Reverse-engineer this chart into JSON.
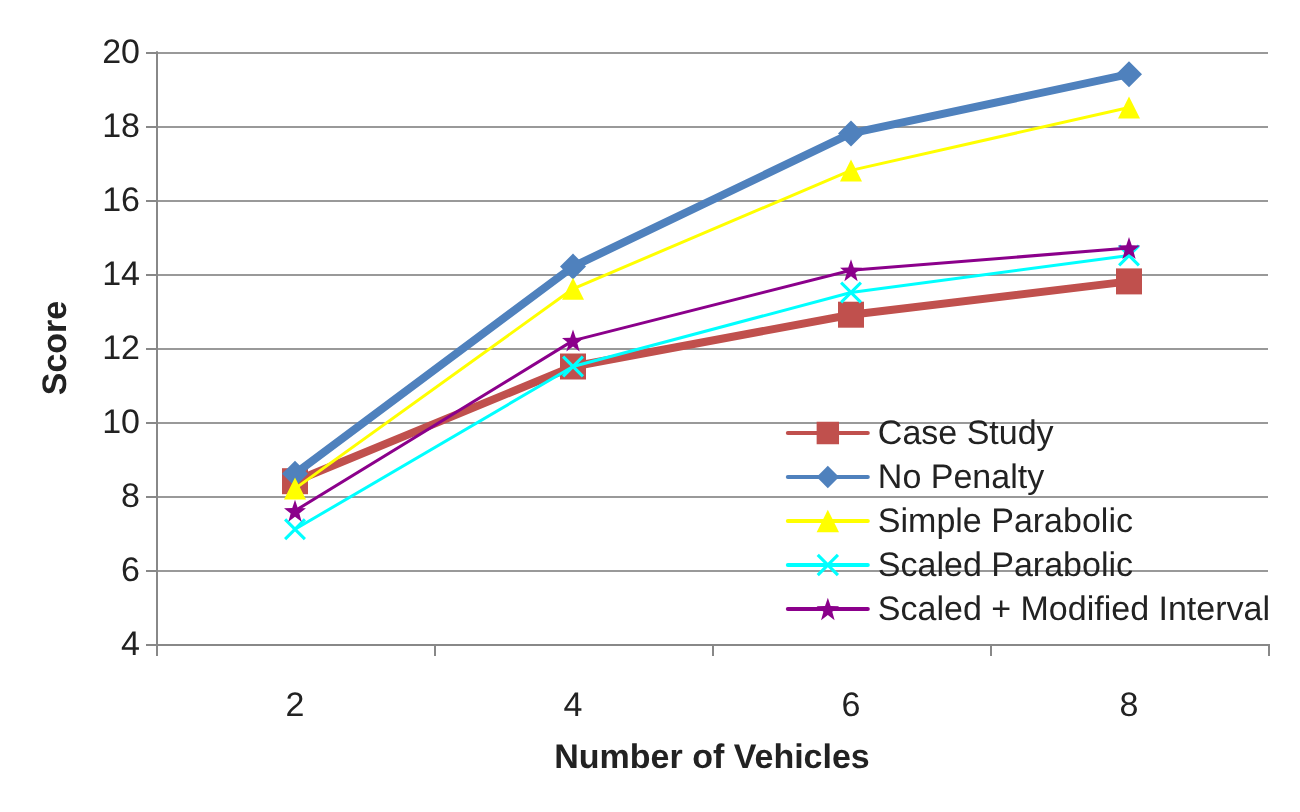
{
  "chart_data": {
    "type": "line",
    "xlabel": "Number of Vehicles",
    "ylabel": "Score",
    "categories": [
      "2",
      "4",
      "6",
      "8"
    ],
    "series": [
      {
        "name": "Case Study",
        "color": "#c0504d",
        "marker": "square",
        "values": [
          8.4,
          11.5,
          12.9,
          13.8
        ]
      },
      {
        "name": "No Penalty",
        "color": "#4f81bd",
        "marker": "diamond",
        "values": [
          8.6,
          14.2,
          17.8,
          19.4
        ]
      },
      {
        "name": "Simple Parabolic",
        "color": "#ffff00",
        "marker": "triangle",
        "values": [
          8.2,
          13.6,
          16.8,
          18.5
        ]
      },
      {
        "name": "Scaled Parabolic",
        "color": "#00ffff",
        "marker": "cross",
        "values": [
          7.1,
          11.5,
          13.5,
          14.5
        ]
      },
      {
        "name": "Scaled + Modified Interval",
        "color": "#8b008b",
        "marker": "star",
        "values": [
          7.6,
          12.2,
          14.1,
          14.7
        ]
      }
    ],
    "ylim": [
      4,
      20
    ],
    "yticks": [
      4,
      6,
      8,
      10,
      12,
      14,
      16,
      18,
      20
    ],
    "grid": "y",
    "legend": "bottom right",
    "line_style": "solid"
  }
}
